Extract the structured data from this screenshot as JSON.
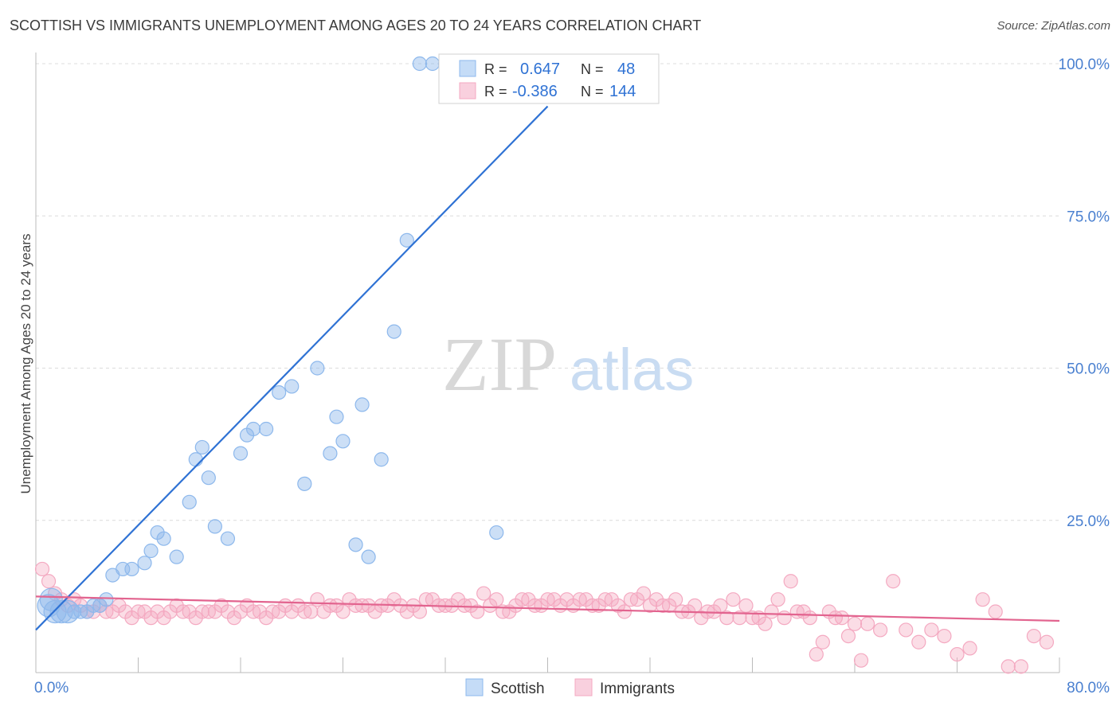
{
  "title": "SCOTTISH VS IMMIGRANTS UNEMPLOYMENT AMONG AGES 20 TO 24 YEARS CORRELATION CHART",
  "source": "Source: ZipAtlas.com",
  "watermark": {
    "zip": "ZIP",
    "atlas": "atlas"
  },
  "legend_box": {
    "rows": [
      {
        "r_label": "R =",
        "r_value": "0.647",
        "n_label": "N =",
        "n_value": "48",
        "color": "#8db8ec"
      },
      {
        "r_label": "R =",
        "r_value": "-0.386",
        "n_label": "N =",
        "n_value": "144",
        "color": "#f4a9c1"
      }
    ]
  },
  "chart_data": {
    "type": "scatter",
    "title": "SCOTTISH VS IMMIGRANTS UNEMPLOYMENT AMONG AGES 20 TO 24 YEARS CORRELATION CHART",
    "xlabel": "",
    "ylabel": "Unemployment Among Ages 20 to 24 years",
    "xlim": [
      0,
      80
    ],
    "ylim": [
      0,
      100
    ],
    "x_tick_labels": [
      "0.0%",
      "80.0%"
    ],
    "y_tick_labels": [
      "25.0%",
      "50.0%",
      "75.0%",
      "100.0%"
    ],
    "y_ticks": [
      25,
      50,
      75,
      100
    ],
    "grid": true,
    "legend_position": "bottom",
    "series": [
      {
        "name": "Scottish",
        "color": "#8db8ec",
        "line_color": "#2f72d4",
        "trend": {
          "x0": 0,
          "y0": 7,
          "x1": 40,
          "y1": 93
        },
        "points": [
          [
            1,
            11
          ],
          [
            1.5,
            10
          ],
          [
            2,
            10
          ],
          [
            1.2,
            12
          ],
          [
            2.5,
            10
          ],
          [
            3,
            10
          ],
          [
            3.5,
            10
          ],
          [
            4,
            10
          ],
          [
            4.5,
            11
          ],
          [
            5,
            11
          ],
          [
            5.5,
            12
          ],
          [
            6,
            16
          ],
          [
            6.8,
            17
          ],
          [
            7.5,
            17
          ],
          [
            8.5,
            18
          ],
          [
            9,
            20
          ],
          [
            9.5,
            23
          ],
          [
            10,
            22
          ],
          [
            11,
            19
          ],
          [
            12,
            28
          ],
          [
            12.5,
            35
          ],
          [
            13,
            37
          ],
          [
            13.5,
            32
          ],
          [
            14,
            24
          ],
          [
            15,
            22
          ],
          [
            16,
            36
          ],
          [
            16.5,
            39
          ],
          [
            17,
            40
          ],
          [
            18,
            40
          ],
          [
            19,
            46
          ],
          [
            20,
            47
          ],
          [
            21,
            31
          ],
          [
            22,
            50
          ],
          [
            23,
            36
          ],
          [
            24,
            38
          ],
          [
            25,
            21
          ],
          [
            26,
            19
          ],
          [
            27,
            35
          ],
          [
            28,
            56
          ],
          [
            29,
            71
          ],
          [
            30,
            100
          ],
          [
            31,
            100
          ],
          [
            32,
            100
          ],
          [
            34,
            100
          ],
          [
            35,
            100
          ],
          [
            23.5,
            42
          ],
          [
            25.5,
            44
          ],
          [
            36,
            23
          ]
        ]
      },
      {
        "name": "Immigrants",
        "color": "#f4a9c1",
        "line_color": "#e2648f",
        "trend": {
          "x0": 0,
          "y0": 12.5,
          "x1": 80,
          "y1": 8.5
        },
        "points": [
          [
            0.5,
            17
          ],
          [
            1,
            15
          ],
          [
            1.5,
            13
          ],
          [
            2,
            12
          ],
          [
            2.5,
            11
          ],
          [
            3,
            12
          ],
          [
            3.5,
            11
          ],
          [
            4,
            10
          ],
          [
            4.5,
            10
          ],
          [
            5,
            11
          ],
          [
            5.5,
            10
          ],
          [
            6,
            10
          ],
          [
            6.5,
            11
          ],
          [
            7,
            10
          ],
          [
            7.5,
            9
          ],
          [
            8,
            10
          ],
          [
            8.5,
            10
          ],
          [
            9,
            9
          ],
          [
            9.5,
            10
          ],
          [
            10,
            9
          ],
          [
            10.5,
            10
          ],
          [
            11,
            11
          ],
          [
            11.5,
            10
          ],
          [
            12,
            10
          ],
          [
            12.5,
            9
          ],
          [
            13,
            10
          ],
          [
            13.5,
            10
          ],
          [
            14,
            10
          ],
          [
            14.5,
            11
          ],
          [
            15,
            10
          ],
          [
            15.5,
            9
          ],
          [
            16,
            10
          ],
          [
            16.5,
            11
          ],
          [
            17,
            10
          ],
          [
            17.5,
            10
          ],
          [
            18,
            9
          ],
          [
            18.5,
            10
          ],
          [
            19,
            10
          ],
          [
            19.5,
            11
          ],
          [
            20,
            10
          ],
          [
            20.5,
            11
          ],
          [
            21,
            10
          ],
          [
            21.5,
            10
          ],
          [
            22,
            12
          ],
          [
            22.5,
            10
          ],
          [
            23,
            11
          ],
          [
            23.5,
            11
          ],
          [
            24,
            10
          ],
          [
            24.5,
            12
          ],
          [
            25,
            11
          ],
          [
            25.5,
            11
          ],
          [
            26,
            11
          ],
          [
            26.5,
            10
          ],
          [
            27,
            11
          ],
          [
            27.5,
            11
          ],
          [
            28,
            12
          ],
          [
            28.5,
            11
          ],
          [
            29,
            10
          ],
          [
            29.5,
            11
          ],
          [
            30,
            10
          ],
          [
            30.5,
            12
          ],
          [
            31,
            12
          ],
          [
            31.5,
            11
          ],
          [
            32,
            11
          ],
          [
            32.5,
            11
          ],
          [
            33,
            12
          ],
          [
            33.5,
            11
          ],
          [
            34,
            11
          ],
          [
            34.5,
            10
          ],
          [
            35,
            13
          ],
          [
            35.5,
            11
          ],
          [
            36,
            12
          ],
          [
            36.5,
            10
          ],
          [
            37,
            10
          ],
          [
            37.5,
            11
          ],
          [
            38,
            12
          ],
          [
            38.5,
            12
          ],
          [
            39,
            11
          ],
          [
            39.5,
            11
          ],
          [
            40,
            12
          ],
          [
            40.5,
            12
          ],
          [
            41,
            11
          ],
          [
            41.5,
            12
          ],
          [
            42,
            11
          ],
          [
            42.5,
            12
          ],
          [
            43,
            12
          ],
          [
            43.5,
            11
          ],
          [
            44,
            11
          ],
          [
            44.5,
            12
          ],
          [
            45,
            12
          ],
          [
            45.5,
            11
          ],
          [
            46,
            10
          ],
          [
            46.5,
            12
          ],
          [
            47,
            12
          ],
          [
            47.5,
            13
          ],
          [
            48,
            11
          ],
          [
            48.5,
            12
          ],
          [
            49,
            11
          ],
          [
            49.5,
            11
          ],
          [
            50,
            12
          ],
          [
            50.5,
            10
          ],
          [
            51,
            10
          ],
          [
            51.5,
            11
          ],
          [
            52,
            9
          ],
          [
            52.5,
            10
          ],
          [
            53,
            10
          ],
          [
            53.5,
            11
          ],
          [
            54,
            9
          ],
          [
            54.5,
            12
          ],
          [
            55,
            9
          ],
          [
            55.5,
            11
          ],
          [
            56,
            9
          ],
          [
            56.5,
            9
          ],
          [
            57,
            8
          ],
          [
            57.5,
            10
          ],
          [
            58,
            12
          ],
          [
            58.5,
            9
          ],
          [
            59,
            15
          ],
          [
            59.5,
            10
          ],
          [
            60,
            10
          ],
          [
            60.5,
            9
          ],
          [
            61,
            3
          ],
          [
            61.5,
            5
          ],
          [
            62,
            10
          ],
          [
            62.5,
            9
          ],
          [
            63,
            9
          ],
          [
            63.5,
            6
          ],
          [
            64,
            8
          ],
          [
            64.5,
            2
          ],
          [
            65,
            8
          ],
          [
            66,
            7
          ],
          [
            67,
            15
          ],
          [
            68,
            7
          ],
          [
            69,
            5
          ],
          [
            70,
            7
          ],
          [
            71,
            6
          ],
          [
            72,
            3
          ],
          [
            73,
            4
          ],
          [
            74,
            12
          ],
          [
            75,
            10
          ],
          [
            76,
            1
          ],
          [
            77,
            1
          ],
          [
            78,
            6
          ],
          [
            79,
            5
          ]
        ]
      }
    ]
  },
  "legend": [
    {
      "label": "Scottish",
      "color": "#8db8ec"
    },
    {
      "label": "Immigrants",
      "color": "#f4a9c1"
    }
  ]
}
